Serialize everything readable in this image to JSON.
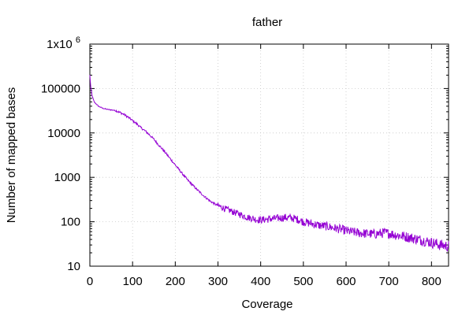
{
  "chart_data": {
    "type": "line",
    "title": "father",
    "xlabel": "Coverage",
    "ylabel": "Number of mapped bases",
    "y_scale": "log",
    "xlim": [
      0,
      840
    ],
    "ylim": [
      10,
      1000000
    ],
    "grid": true,
    "legend": "none",
    "line_color": "#9400d3",
    "x_ticks": [
      {
        "value": 0,
        "label": "0"
      },
      {
        "value": 100,
        "label": "100"
      },
      {
        "value": 200,
        "label": "200"
      },
      {
        "value": 300,
        "label": "300"
      },
      {
        "value": 400,
        "label": "400"
      },
      {
        "value": 500,
        "label": "500"
      },
      {
        "value": 600,
        "label": "600"
      },
      {
        "value": 700,
        "label": "700"
      },
      {
        "value": 800,
        "label": "800"
      }
    ],
    "y_ticks": [
      {
        "value": 10,
        "label": "10"
      },
      {
        "value": 100,
        "label": "100"
      },
      {
        "value": 1000,
        "label": "1000"
      },
      {
        "value": 10000,
        "label": "10000"
      },
      {
        "value": 100000,
        "label": "100000"
      }
    ],
    "y_top_tick": {
      "value": 1000000,
      "base": "1x10",
      "exponent": "6"
    },
    "series": [
      {
        "x": [
          0,
          2,
          5,
          10,
          20,
          30,
          40,
          50,
          60,
          70,
          80,
          90,
          100,
          110,
          120,
          130,
          140,
          150,
          160,
          170,
          180,
          190,
          200,
          210,
          220,
          230,
          240,
          250,
          260,
          270,
          280,
          290,
          300,
          310,
          320,
          330,
          340,
          350,
          360,
          370,
          380,
          390,
          400,
          410,
          420,
          430,
          440,
          450,
          460,
          470,
          480,
          490,
          500,
          510,
          520,
          530,
          540,
          550,
          560,
          570,
          580,
          590,
          600,
          610,
          620,
          630,
          640,
          650,
          660,
          670,
          680,
          690,
          700,
          710,
          720,
          730,
          740,
          750,
          760,
          770,
          780,
          790,
          800,
          810,
          820,
          830,
          840
        ],
        "values": [
          200000,
          110000,
          70000,
          50000,
          40000,
          36000,
          34000,
          33000,
          32000,
          29000,
          26000,
          22500,
          19000,
          16000,
          13000,
          11000,
          9000,
          7200,
          5500,
          4300,
          3300,
          2500,
          1900,
          1450,
          1100,
          850,
          680,
          540,
          440,
          360,
          300,
          260,
          230,
          210,
          190,
          175,
          160,
          150,
          135,
          125,
          120,
          112,
          110,
          112,
          115,
          118,
          120,
          122,
          125,
          122,
          118,
          110,
          100,
          95,
          90,
          86,
          82,
          80,
          77,
          73,
          70,
          67,
          63,
          60,
          58,
          56,
          55,
          54,
          53,
          53,
          55,
          56,
          55,
          52,
          50,
          48,
          46,
          44,
          42,
          40,
          38,
          36,
          34,
          32,
          30,
          29,
          28
        ]
      }
    ]
  }
}
